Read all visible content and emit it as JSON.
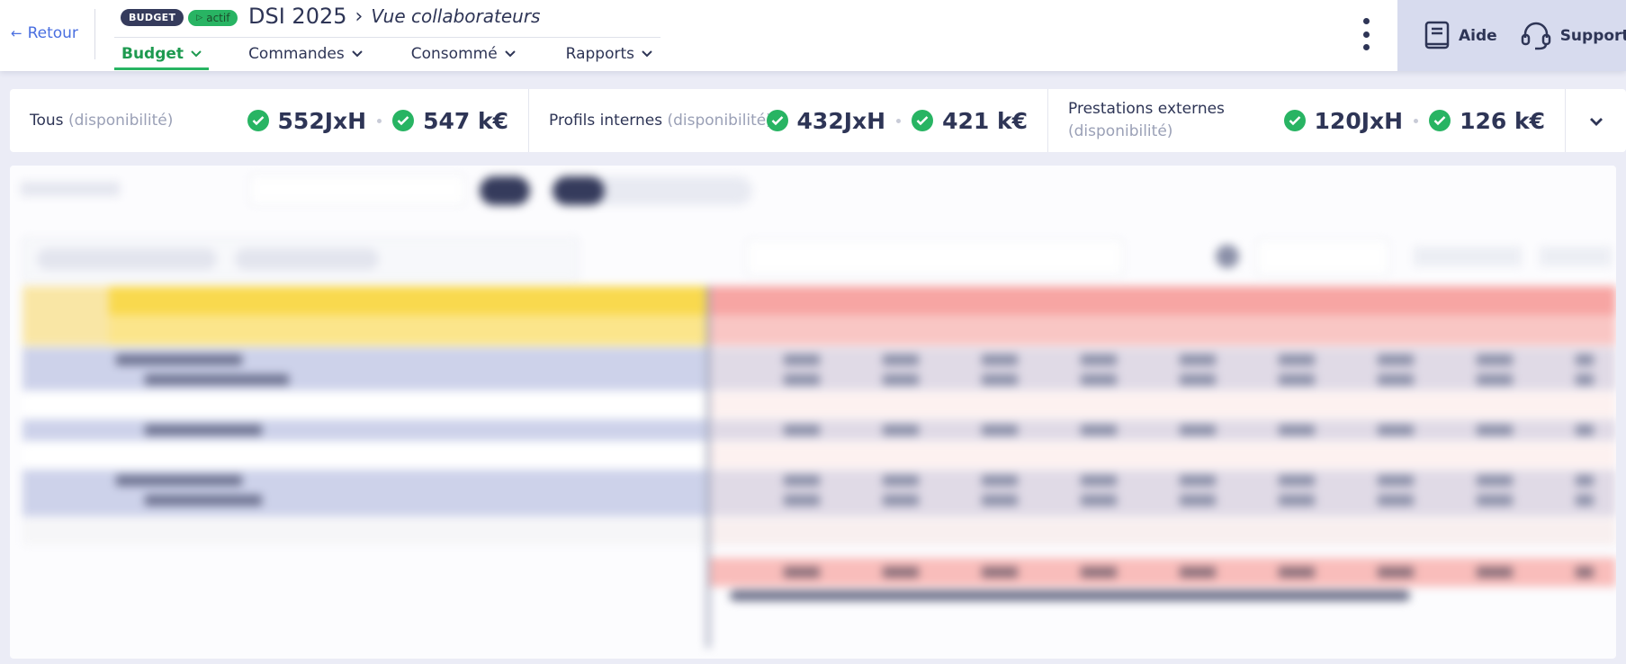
{
  "header": {
    "back_label": "Retour",
    "badge_type": "BUDGET",
    "badge_status": "actif",
    "title": "DSI 2025",
    "subtitle": "Vue collaborateurs",
    "tabs": [
      {
        "label": "Budget",
        "active": true
      },
      {
        "label": "Commandes",
        "active": false
      },
      {
        "label": "Consommé",
        "active": false
      },
      {
        "label": "Rapports",
        "active": false
      }
    ],
    "help_label": "Aide",
    "support_label": "Support"
  },
  "summary": {
    "cards": [
      {
        "label": "Tous",
        "qualifier": "(disponibilité)",
        "days": "552JxH",
        "amount": "547 k€"
      },
      {
        "label": "Profils internes",
        "qualifier": "(disponibilité)",
        "days": "432JxH",
        "amount": "421 k€"
      },
      {
        "label": "Prestations externes",
        "qualifier": "(disponibilité)",
        "days": "120JxH",
        "amount": "126 k€"
      }
    ]
  },
  "colors": {
    "accent_green": "#28b463",
    "navy": "#2e3556",
    "link_blue": "#4a6fe0",
    "help_bg": "#d7dbee",
    "qualification_header": "#f9d94e",
    "budget_header": "#f7a5a3",
    "group_row": "#cdd2ea"
  },
  "icons": {
    "back": "arrow-left-icon",
    "status": "play-icon",
    "breadcrumb": "chevron-right-icon",
    "tab_menu": "chevron-down-icon",
    "more": "kebab-menu-icon",
    "help": "book-icon",
    "support": "headset-icon",
    "ok": "check-circle-icon",
    "expand": "chevron-down-icon"
  }
}
